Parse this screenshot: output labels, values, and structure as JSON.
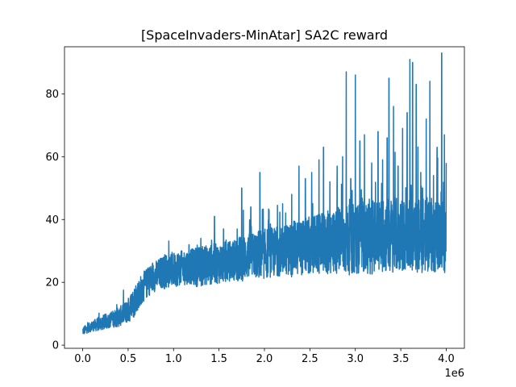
{
  "chart_data": {
    "type": "line",
    "title": "[SpaceInvaders-MinAtar] SA2C reward",
    "xlabel": "",
    "ylabel": "",
    "x_offset_label": "1e6",
    "xlim": [
      -0.2,
      4.2
    ],
    "ylim": [
      -1,
      95
    ],
    "x_ticks": [
      0.0,
      0.5,
      1.0,
      1.5,
      2.0,
      2.5,
      3.0,
      3.5,
      4.0
    ],
    "x_tick_labels": [
      "0.0",
      "0.5",
      "1.0",
      "1.5",
      "2.0",
      "2.5",
      "3.0",
      "3.5",
      "4.0"
    ],
    "y_ticks": [
      0,
      20,
      40,
      60,
      80
    ],
    "y_tick_labels": [
      "0",
      "20",
      "40",
      "60",
      "80"
    ],
    "grid": false,
    "series": [
      {
        "color": "#1f77b4",
        "x": [
          0.0,
          0.1,
          0.2,
          0.3,
          0.4,
          0.45,
          0.5,
          0.55,
          0.6,
          0.65,
          0.7,
          0.75,
          0.8,
          0.85,
          0.9,
          0.95,
          1.0,
          1.05,
          1.1,
          1.15,
          1.2,
          1.25,
          1.3,
          1.35,
          1.4,
          1.45,
          1.5,
          1.55,
          1.6,
          1.65,
          1.7,
          1.75,
          1.8,
          1.85,
          1.9,
          1.95,
          2.0,
          2.05,
          2.1,
          2.15,
          2.2,
          2.25,
          2.3,
          2.35,
          2.4,
          2.45,
          2.5,
          2.55,
          2.6,
          2.65,
          2.7,
          2.75,
          2.8,
          2.85,
          2.9,
          2.95,
          3.0,
          3.05,
          3.1,
          3.15,
          3.2,
          3.25,
          3.3,
          3.35,
          3.4,
          3.45,
          3.5,
          3.55,
          3.6,
          3.65,
          3.7,
          3.75,
          3.8,
          3.85,
          3.9,
          3.95,
          4.0
        ],
        "y": [
          4.5,
          6.0,
          7.0,
          8.0,
          9.0,
          10.0,
          11.0,
          13.0,
          15.5,
          18.0,
          19.5,
          21.0,
          22.0,
          23.0,
          23.5,
          24.0,
          24.0,
          24.5,
          24.5,
          25.0,
          25.0,
          25.0,
          25.0,
          25.5,
          25.5,
          26.0,
          26.0,
          26.5,
          26.5,
          27.0,
          27.5,
          27.5,
          28.0,
          28.5,
          28.5,
          29.0,
          29.0,
          29.5,
          29.5,
          30.0,
          30.0,
          30.5,
          30.5,
          31.0,
          31.0,
          31.5,
          31.5,
          32.0,
          32.0,
          32.5,
          32.5,
          33.0,
          33.0,
          33.5,
          33.5,
          33.5,
          34.0,
          34.0,
          34.0,
          34.5,
          34.5,
          34.5,
          35.0,
          35.0,
          35.0,
          35.0,
          35.0,
          35.0,
          35.0,
          35.0,
          35.0,
          35.0,
          35.0,
          35.0,
          35.0,
          35.0,
          35.0
        ],
        "spread": [
          0.8,
          1.0,
          1.5,
          1.5,
          2.0,
          2.0,
          2.5,
          3.0,
          3.0,
          3.0,
          3.0,
          3.0,
          3.0,
          3.0,
          3.5,
          3.5,
          3.5,
          3.5,
          3.5,
          3.5,
          3.5,
          4.0,
          4.0,
          4.0,
          4.0,
          4.0,
          4.0,
          4.0,
          4.0,
          4.0,
          4.5,
          4.5,
          4.5,
          4.5,
          4.5,
          5.0,
          5.0,
          5.0,
          5.0,
          5.0,
          5.0,
          5.0,
          5.5,
          5.5,
          5.5,
          5.5,
          6.0,
          6.0,
          6.0,
          6.0,
          6.5,
          6.5,
          6.5,
          6.5,
          7.0,
          7.0,
          7.0,
          7.0,
          7.0,
          7.5,
          7.5,
          7.5,
          7.5,
          7.5,
          7.5,
          7.5,
          7.5,
          7.5,
          7.5,
          7.5,
          7.5,
          7.5,
          7.5,
          7.5,
          7.5,
          7.5,
          7.5
        ],
        "peaks": [
          [
            1.17,
            32
          ],
          [
            1.3,
            34
          ],
          [
            1.45,
            41
          ],
          [
            1.55,
            37
          ],
          [
            1.62,
            33
          ],
          [
            1.7,
            37
          ],
          [
            1.75,
            50
          ],
          [
            1.85,
            44
          ],
          [
            1.95,
            55
          ],
          [
            2.05,
            43
          ],
          [
            2.2,
            45
          ],
          [
            2.3,
            48
          ],
          [
            2.38,
            57
          ],
          [
            2.45,
            53
          ],
          [
            2.52,
            55
          ],
          [
            2.6,
            59
          ],
          [
            2.65,
            63
          ],
          [
            2.72,
            52
          ],
          [
            2.8,
            57
          ],
          [
            2.86,
            60
          ],
          [
            2.9,
            87
          ],
          [
            2.95,
            53
          ],
          [
            3.0,
            86
          ],
          [
            3.05,
            65
          ],
          [
            3.1,
            67
          ],
          [
            3.18,
            58
          ],
          [
            3.25,
            68
          ],
          [
            3.3,
            59
          ],
          [
            3.35,
            66
          ],
          [
            3.37,
            85
          ],
          [
            3.42,
            76
          ],
          [
            3.47,
            57
          ],
          [
            3.52,
            69
          ],
          [
            3.57,
            74
          ],
          [
            3.6,
            91
          ],
          [
            3.63,
            90
          ],
          [
            3.67,
            83
          ],
          [
            3.72,
            55
          ],
          [
            3.78,
            72
          ],
          [
            3.82,
            84
          ],
          [
            3.86,
            54
          ],
          [
            3.9,
            63
          ],
          [
            3.95,
            93
          ],
          [
            3.98,
            67
          ],
          [
            4.0,
            58
          ]
        ]
      }
    ]
  }
}
